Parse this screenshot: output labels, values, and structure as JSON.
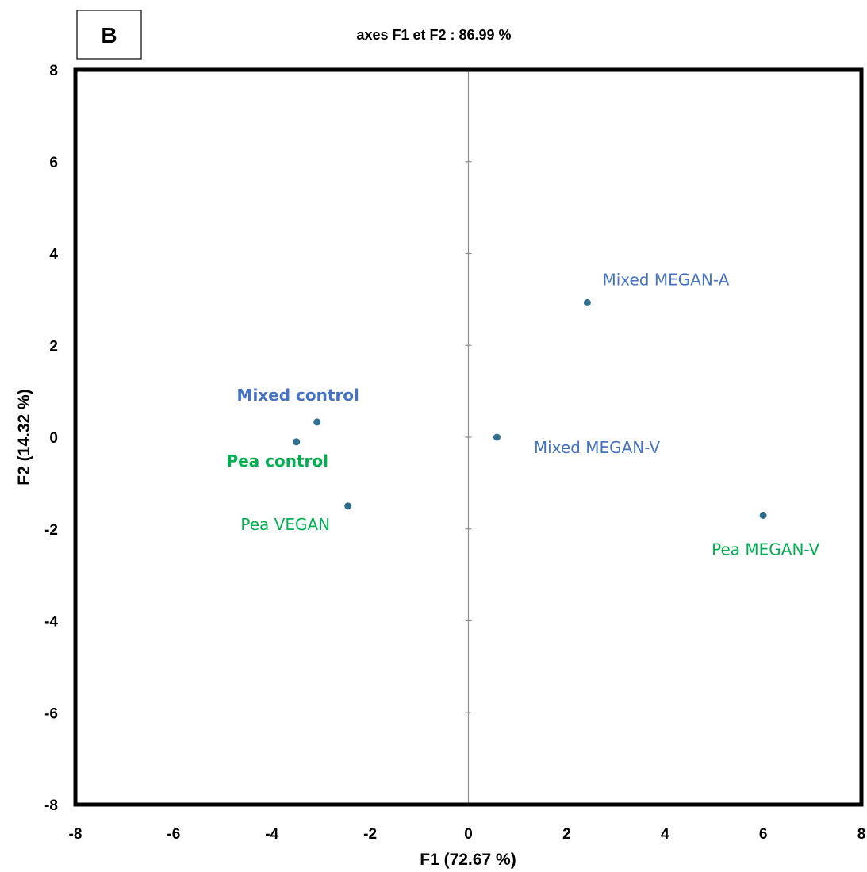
{
  "panel_label": "B",
  "chart_data": {
    "type": "scatter",
    "title": "axes F1 et F2 : 86.99 %",
    "xlabel": "F1 (72.67 %)",
    "ylabel": "F2 (14.32 %)",
    "xlim": [
      -8,
      8
    ],
    "ylim": [
      -8,
      8
    ],
    "xticks": [
      -8,
      -6,
      -4,
      -2,
      0,
      2,
      4,
      6,
      8
    ],
    "yticks": [
      -8,
      -6,
      -4,
      -2,
      0,
      2,
      4,
      6,
      8
    ],
    "grid": false,
    "zero_axes": true,
    "marker_color": "#2E6F8E",
    "points": [
      {
        "label": "Mixed control",
        "x": -3.08,
        "y": 0.33,
        "color": "#4472C4",
        "bold": true
      },
      {
        "label": "Pea control",
        "x": -3.5,
        "y": -0.1,
        "color": "#00B050",
        "bold": true
      },
      {
        "label": "Pea VEGAN",
        "x": -2.45,
        "y": -1.5,
        "color": "#00B050",
        "bold": false
      },
      {
        "label": "Mixed MEGAN-V",
        "x": 0.58,
        "y": 0.0,
        "color": "#4472C4",
        "bold": false
      },
      {
        "label": "Mixed MEGAN-A",
        "x": 2.42,
        "y": 2.93,
        "color": "#4472C4",
        "bold": false
      },
      {
        "label": "Pea MEGAN-V",
        "x": 6.0,
        "y": -1.7,
        "color": "#00B050",
        "bold": false
      }
    ]
  }
}
